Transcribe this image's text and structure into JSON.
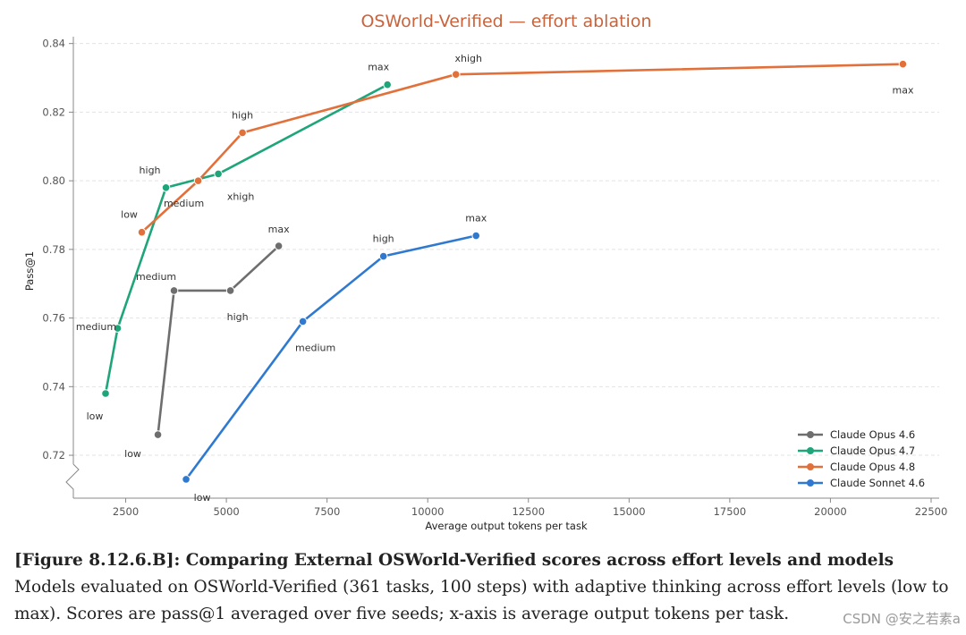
{
  "chart_data": {
    "type": "line",
    "title": "OSWorld-Verified — effort ablation",
    "xlabel": "Average output tokens per task",
    "ylabel": "Pass@1",
    "xlim": [
      1200,
      22700
    ],
    "ylim": [
      0.7075,
      0.842
    ],
    "xticks": [
      2500,
      5000,
      7500,
      10000,
      12500,
      15000,
      17500,
      20000,
      22500
    ],
    "xtick_labels": [
      "2500",
      "5000",
      "7500",
      "10000",
      "12500",
      "15000",
      "17500",
      "20000",
      "22500"
    ],
    "yticks": [
      0.72,
      0.74,
      0.76,
      0.78,
      0.8,
      0.82,
      0.84
    ],
    "ytick_labels": [
      "0.72",
      "0.74",
      "0.76",
      "0.78",
      "0.80",
      "0.82",
      "0.84"
    ],
    "grid": "horizontal",
    "y_axis_break": true,
    "legend_position": "bottom-right",
    "series": [
      {
        "name": "Claude Opus 4.6",
        "color": "#6e6e6e",
        "points": [
          {
            "x": 3300,
            "y": 0.726,
            "label": "low"
          },
          {
            "x": 3700,
            "y": 0.768,
            "label": "medium"
          },
          {
            "x": 5100,
            "y": 0.768,
            "label": "high"
          },
          {
            "x": 6300,
            "y": 0.781,
            "label": "max"
          }
        ]
      },
      {
        "name": "Claude Opus 4.7",
        "color": "#1fa57a",
        "points": [
          {
            "x": 2000,
            "y": 0.738,
            "label": "low"
          },
          {
            "x": 2300,
            "y": 0.757,
            "label": "medium"
          },
          {
            "x": 3500,
            "y": 0.798,
            "label": "high"
          },
          {
            "x": 4800,
            "y": 0.802,
            "label": "xhigh"
          },
          {
            "x": 9000,
            "y": 0.828,
            "label": "max"
          }
        ]
      },
      {
        "name": "Claude Opus 4.8",
        "color": "#e2703a",
        "points": [
          {
            "x": 2900,
            "y": 0.785,
            "label": "low"
          },
          {
            "x": 4300,
            "y": 0.8,
            "label": "medium"
          },
          {
            "x": 5400,
            "y": 0.814,
            "label": "high"
          },
          {
            "x": 10700,
            "y": 0.831,
            "label": "xhigh"
          },
          {
            "x": 21800,
            "y": 0.834,
            "label": "max"
          }
        ]
      },
      {
        "name": "Claude Sonnet 4.6",
        "color": "#2f7ad0",
        "points": [
          {
            "x": 4000,
            "y": 0.713,
            "label": "low"
          },
          {
            "x": 6900,
            "y": 0.759,
            "label": "medium"
          },
          {
            "x": 8900,
            "y": 0.778,
            "label": "high"
          },
          {
            "x": 11200,
            "y": 0.784,
            "label": "max"
          }
        ]
      }
    ]
  },
  "caption": {
    "bold": "[Figure 8.12.6.B]: Comparing External OSWorld-Verified scores across effort levels and models",
    "text": " Models evaluated on OSWorld-Verified (361 tasks, 100 steps) with adaptive thinking across effort levels (low to max). Scores are pass@1 averaged over five seeds; x-axis is average output tokens per task."
  },
  "watermark": "CSDN @安之若素a"
}
